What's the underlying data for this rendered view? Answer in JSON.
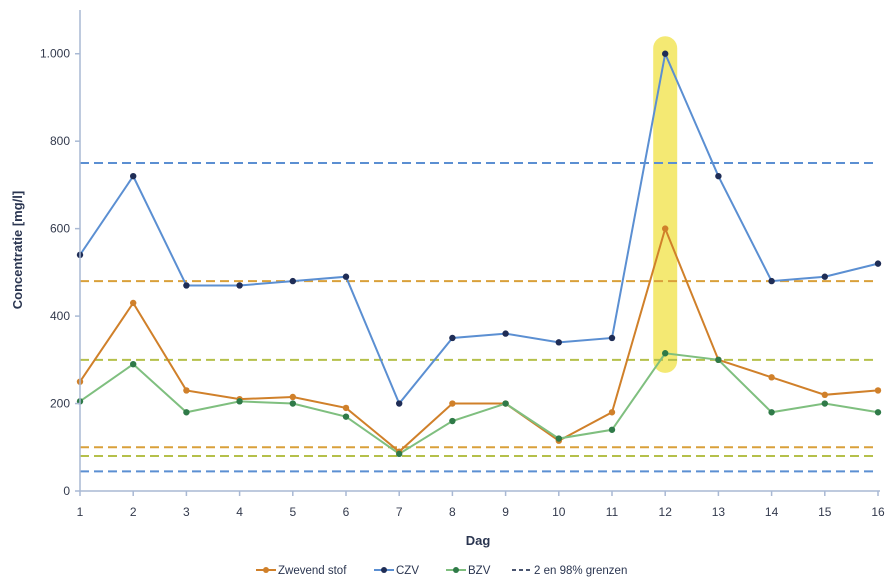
{
  "chart_data": {
    "type": "line",
    "xlabel": "Dag",
    "ylabel": "Concentratie [mg/l]",
    "x": [
      1,
      2,
      3,
      4,
      5,
      6,
      7,
      8,
      9,
      10,
      11,
      12,
      13,
      14,
      15,
      16
    ],
    "x_tick_labels": [
      "1",
      "2",
      "3",
      "4",
      "5",
      "6",
      "7",
      "8",
      "9",
      "10",
      "11",
      "12",
      "13",
      "14",
      "15",
      "16"
    ],
    "xlim": [
      1,
      16
    ],
    "ylim": [
      0,
      1100
    ],
    "y_ticks": [
      0,
      200,
      400,
      600,
      800,
      1000
    ],
    "y_tick_labels": [
      "0",
      "200",
      "400",
      "600",
      "800",
      "1.000"
    ],
    "grid": false,
    "legend_position": "bottom",
    "series": [
      {
        "name": "Zwevend stof",
        "color": "#d0802a",
        "values": [
          250,
          430,
          230,
          210,
          215,
          190,
          90,
          200,
          200,
          115,
          180,
          600,
          300,
          260,
          220,
          230
        ]
      },
      {
        "name": "CZV",
        "color": "#5b8fd2",
        "marker_color": "#1f2d56",
        "values": [
          540,
          720,
          470,
          470,
          480,
          490,
          200,
          350,
          360,
          340,
          350,
          1000,
          720,
          480,
          490,
          520
        ]
      },
      {
        "name": "BZV",
        "color": "#7fbf7f",
        "marker_color": "#2f7a48",
        "values": [
          205,
          290,
          180,
          205,
          200,
          170,
          85,
          160,
          200,
          120,
          140,
          315,
          300,
          180,
          200,
          180
        ]
      }
    ],
    "reference_lines": {
      "legend_label": "2 en 98% grenzen",
      "lines": [
        {
          "series": "CZV",
          "values": [
            750,
            45
          ],
          "color": "#5b8fd2"
        },
        {
          "series": "Zwevend stof",
          "values": [
            480,
            100
          ],
          "color": "#d9a03a"
        },
        {
          "series": "BZV",
          "values": [
            300,
            80
          ],
          "color": "#b5c04a"
        }
      ]
    },
    "highlight": {
      "x": 12,
      "y_range": [
        270,
        1040
      ],
      "color": "#f2e55a"
    }
  }
}
